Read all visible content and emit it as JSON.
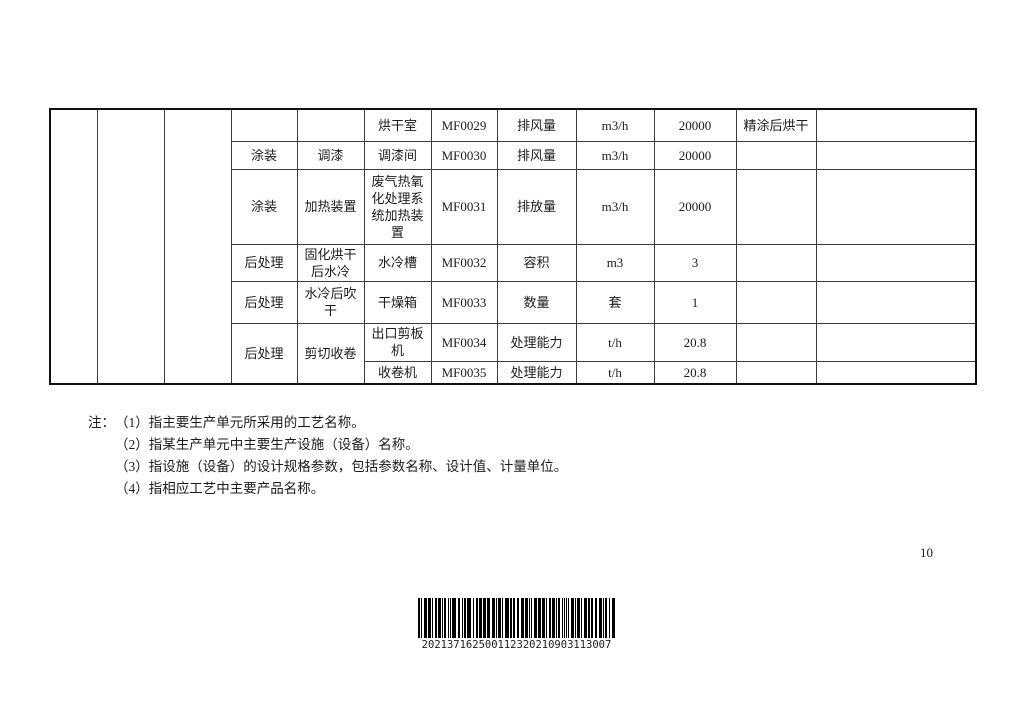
{
  "page": {
    "number": "10"
  },
  "table": {
    "rows": [
      {
        "unit": "",
        "facility": "",
        "device": "烘干室",
        "code": "MF0029",
        "param": "排风量",
        "measure": "m3/h",
        "value": "20000",
        "product": "精涂后烘干",
        "remark": ""
      },
      {
        "unit": "涂装",
        "facility": "调漆",
        "device": "调漆间",
        "code": "MF0030",
        "param": "排风量",
        "measure": "m3/h",
        "value": "20000",
        "product": "",
        "remark": ""
      },
      {
        "unit": "涂装",
        "facility": "加热装置",
        "device": "废气热氧化处理系统加热装置",
        "code": "MF0031",
        "param": "排放量",
        "measure": "m3/h",
        "value": "20000",
        "product": "",
        "remark": ""
      },
      {
        "unit": "后处理",
        "facility": "固化烘干后水冷",
        "device": "水冷槽",
        "code": "MF0032",
        "param": "容积",
        "measure": "m3",
        "value": "3",
        "product": "",
        "remark": ""
      },
      {
        "unit": "后处理",
        "facility": "水冷后吹干",
        "device": "干燥箱",
        "code": "MF0033",
        "param": "数量",
        "measure": "套",
        "value": "1",
        "product": "",
        "remark": ""
      },
      {
        "unit": "后处理",
        "facility": "剪切收卷",
        "device": "出口剪板机",
        "code": "MF0034",
        "param": "处理能力",
        "measure": "t/h",
        "value": "20.8",
        "product": "",
        "remark": ""
      },
      {
        "device": "收卷机",
        "code": "MF0035",
        "param": "处理能力",
        "measure": "t/h",
        "value": "20.8",
        "product": "",
        "remark": ""
      }
    ]
  },
  "notes": {
    "label": "注：",
    "items": [
      "（1）指主要生产单元所采用的工艺名称。",
      "（2）指某生产单元中主要生产设施（设备）名称。",
      "（3）指设施（设备）的设计规格参数，包括参数名称、设计值、计量单位。",
      "（4）指相应工艺中主要产品名称。"
    ]
  },
  "barcode": {
    "digits": "202137162500112320210903113007"
  }
}
